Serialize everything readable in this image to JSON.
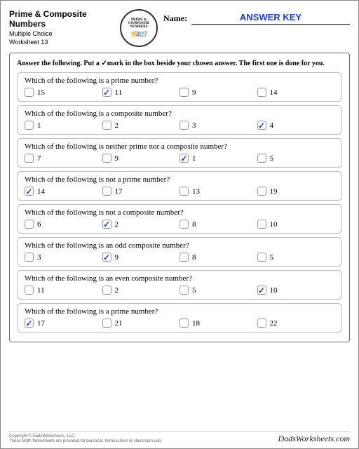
{
  "header": {
    "title": "Prime & Composite Numbers",
    "subtitle1": "Multiple Choice",
    "subtitle2": "Worksheet 13",
    "logo_line1": "PRIME &",
    "logo_line2": "COMPOSITE",
    "logo_line3": "NUMBERS",
    "name_label": "Name:",
    "name_value": "ANSWER KEY"
  },
  "instructions": "Answer the following.  Put a ✓mark in the box beside your chosen answer.  The first one is done for you.",
  "questions": [
    {
      "text": "Which of the following is a prime number?",
      "opts": [
        "15",
        "11",
        "9",
        "14"
      ],
      "answer": 1
    },
    {
      "text": "Which of the following is a composite number?",
      "opts": [
        "1",
        "2",
        "3",
        "4"
      ],
      "answer": 3
    },
    {
      "text": "Which of the following is neither prime nor a composite number?",
      "opts": [
        "7",
        "9",
        "1",
        "5"
      ],
      "answer": 2
    },
    {
      "text": "Which of the following is not a prime number?",
      "opts": [
        "14",
        "17",
        "13",
        "19"
      ],
      "answer": 0
    },
    {
      "text": "Which of the following is not a composite number?",
      "opts": [
        "6",
        "2",
        "8",
        "10"
      ],
      "answer": 1
    },
    {
      "text": "Which of the following is an odd composite number?",
      "opts": [
        "3",
        "9",
        "8",
        "5"
      ],
      "answer": 1
    },
    {
      "text": "Which of the following is an even composite number?",
      "opts": [
        "11",
        "2",
        "5",
        "10"
      ],
      "answer": 3
    },
    {
      "text": "Which of the following is a prime number?",
      "opts": [
        "17",
        "21",
        "18",
        "22"
      ],
      "answer": 0
    }
  ],
  "footer": {
    "copyright1": "Copyright © DadsWorksheets, LLC",
    "copyright2": "These Math Worksheets are provided for personal, homeschool or classroom use.",
    "brand": "DadsWorksheets.com"
  },
  "colors": {
    "check": "#1a3fd4",
    "border": "#666"
  }
}
